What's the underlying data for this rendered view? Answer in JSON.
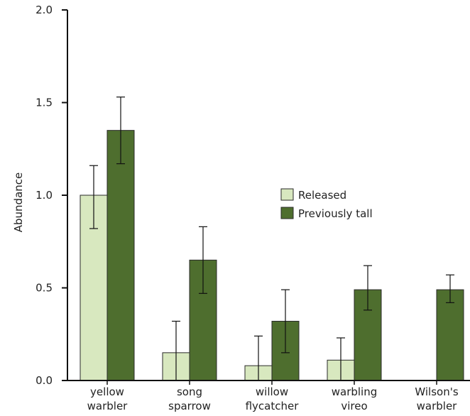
{
  "chart_data": {
    "type": "bar",
    "title": "",
    "xlabel": "",
    "ylabel": "Abundance",
    "ylim": [
      0,
      2.0
    ],
    "yticks": [
      "0.0",
      "0.5",
      "1.0",
      "1.5",
      "2.0"
    ],
    "categories": [
      [
        "yellow",
        "warbler"
      ],
      [
        "song",
        "sparrow"
      ],
      [
        "willow",
        "flycatcher"
      ],
      [
        "warbling",
        "vireo"
      ],
      [
        "Wilson's",
        "warbler"
      ]
    ],
    "series": [
      {
        "name": "Released",
        "color": "#d8e8bf",
        "values": [
          1.0,
          0.15,
          0.08,
          0.11,
          0
        ],
        "err_low": [
          0.82,
          0.0,
          0.0,
          0.0,
          0
        ],
        "err_high": [
          1.16,
          0.32,
          0.24,
          0.23,
          0
        ]
      },
      {
        "name": "Previously tall",
        "color": "#4e6e2e",
        "values": [
          1.35,
          0.65,
          0.32,
          0.49,
          0.49
        ],
        "err_low": [
          1.17,
          0.47,
          0.15,
          0.38,
          0.42
        ],
        "err_high": [
          1.53,
          0.83,
          0.49,
          0.62,
          0.57
        ]
      }
    ],
    "legend_position": "center-right",
    "grid": false
  }
}
